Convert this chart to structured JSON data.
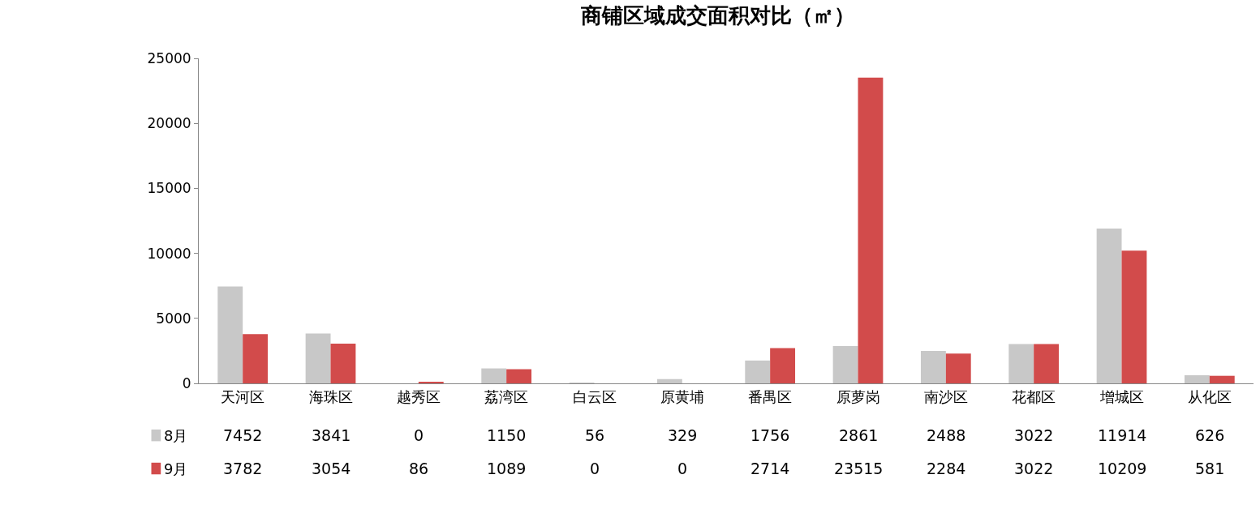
{
  "chart_data": {
    "type": "bar",
    "title": "商铺区域成交面积对比（㎡）",
    "categories": [
      "天河区",
      "海珠区",
      "越秀区",
      "荔湾区",
      "白云区",
      "原黄埔",
      "番禺区",
      "原萝岗",
      "南沙区",
      "花都区",
      "增城区",
      "从化区"
    ],
    "series": [
      {
        "name": "8月",
        "color": "#c8c8c8",
        "values": [
          7452,
          3841,
          0,
          1150,
          56,
          329,
          1756,
          2861,
          2488,
          3022,
          11914,
          626
        ]
      },
      {
        "name": "9月",
        "color": "#d24b4b",
        "values": [
          3782,
          3054,
          86,
          1089,
          0,
          0,
          2714,
          23515,
          2284,
          3022,
          10209,
          581
        ]
      }
    ],
    "ylim": [
      0,
      25000
    ],
    "yticks": [
      0,
      5000,
      10000,
      15000,
      20000,
      25000
    ],
    "data_labels": true,
    "legend": "bottom left"
  }
}
